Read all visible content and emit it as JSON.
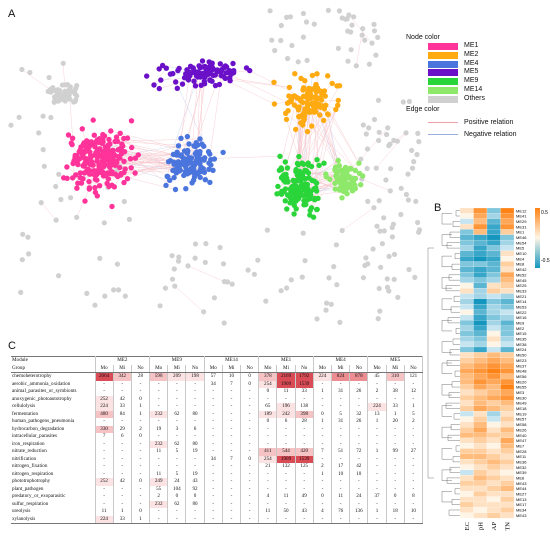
{
  "panels": {
    "a": "A",
    "b": "B",
    "c": "C"
  },
  "legend": {
    "node_title": "Node color",
    "nodes": [
      {
        "label": "ME1",
        "color": "#ff3399"
      },
      {
        "label": "ME2",
        "color": "#ffaa11"
      },
      {
        "label": "ME4",
        "color": "#4a75dd"
      },
      {
        "label": "ME5",
        "color": "#6a10c8"
      },
      {
        "label": "ME9",
        "color": "#2ad53a"
      },
      {
        "label": "ME14",
        "color": "#8ee86a"
      },
      {
        "label": "Others",
        "color": "#d0d0d0"
      }
    ],
    "edge_title": "Edge color",
    "edges": [
      {
        "label": "Positive relation",
        "color": "#f0a0a8"
      },
      {
        "label": "Negative relation",
        "color": "#9aaee0"
      }
    ]
  },
  "heatmap": {
    "columns": [
      "EC",
      "pH",
      "AP",
      "TN"
    ],
    "scale_max": "0.5",
    "scale_min": "-0.5",
    "rows": [
      "ME12",
      "ME41",
      "ME29",
      "ME31",
      "ME1",
      "ME46",
      "ME54",
      "ME5",
      "ME10",
      "ME4",
      "ME8",
      "ME42",
      "ME52",
      "ME45",
      "ME25",
      "ME33",
      "ME21",
      "ME14",
      "ME53",
      "ME22",
      "ME16",
      "ME9",
      "ME2",
      "ME15",
      "ME35",
      "ME38",
      "ME24",
      "ME50",
      "ME23",
      "ME37",
      "ME48",
      "ME56",
      "ME20",
      "ME55",
      "ME3",
      "ME30",
      "ME49",
      "ME18",
      "ME19",
      "ME57",
      "ME58",
      "ME26",
      "ME40",
      "ME47",
      "ME7",
      "ME28",
      "ME11",
      "ME36",
      "ME32",
      "ME39",
      "ME6",
      "ME43",
      "ME44",
      "ME27",
      "ME13",
      "ME17",
      "ME34",
      "ME43"
    ],
    "values": [
      [
        0.1,
        0.5,
        -0.3,
        0.6
      ],
      [
        0.0,
        0.4,
        -0.2,
        0.5
      ],
      [
        -0.1,
        0.3,
        -0.4,
        0.4
      ],
      [
        0.1,
        0.5,
        -0.5,
        0.5
      ],
      [
        -0.3,
        0.3,
        -0.5,
        0.2
      ],
      [
        -0.4,
        -0.5,
        -0.6,
        -0.3
      ],
      [
        -0.3,
        -0.4,
        -0.5,
        -0.2
      ],
      [
        -0.2,
        -0.5,
        -0.3,
        -0.1
      ],
      [
        -0.4,
        -0.5,
        -0.4,
        0.1
      ],
      [
        -0.5,
        -0.6,
        -0.5,
        0.0
      ],
      [
        -0.3,
        -0.3,
        -0.4,
        0.2
      ],
      [
        -0.4,
        -0.5,
        -0.4,
        0.1
      ],
      [
        -0.3,
        -0.5,
        -0.3,
        0.4
      ],
      [
        -0.2,
        -0.3,
        -0.2,
        0.3
      ],
      [
        0.0,
        -0.4,
        0.1,
        0.2
      ],
      [
        0.1,
        -0.2,
        0.2,
        0.1
      ],
      [
        -0.1,
        -0.2,
        -0.1,
        -0.2
      ],
      [
        -0.2,
        -0.6,
        -0.3,
        -0.4
      ],
      [
        -0.1,
        -0.5,
        -0.2,
        -0.3
      ],
      [
        0.0,
        -0.4,
        -0.2,
        -0.1
      ],
      [
        -0.1,
        -0.5,
        -0.3,
        -0.2
      ],
      [
        -0.3,
        -0.6,
        -0.2,
        -0.4
      ],
      [
        -0.2,
        -0.5,
        -0.1,
        -0.3
      ],
      [
        -0.3,
        -0.4,
        0.0,
        -0.3
      ],
      [
        -0.2,
        -0.3,
        0.1,
        -0.2
      ],
      [
        -0.1,
        -0.2,
        0.0,
        -0.1
      ],
      [
        -0.3,
        -0.5,
        -0.1,
        -0.4
      ],
      [
        0.1,
        0.2,
        0.3,
        0.2
      ],
      [
        0.2,
        0.3,
        0.4,
        0.3
      ],
      [
        0.3,
        0.4,
        0.5,
        0.4
      ],
      [
        0.4,
        0.5,
        0.6,
        0.5
      ],
      [
        0.3,
        0.4,
        0.5,
        0.3
      ],
      [
        0.3,
        0.5,
        0.4,
        0.5
      ],
      [
        0.2,
        0.4,
        0.3,
        0.6
      ],
      [
        0.1,
        0.2,
        0.3,
        0.4
      ],
      [
        0.2,
        0.3,
        0.4,
        0.5
      ],
      [
        0.1,
        0.3,
        0.2,
        0.3
      ],
      [
        0.2,
        0.4,
        0.3,
        0.2
      ],
      [
        -0.1,
        0.1,
        -0.2,
        0.1
      ],
      [
        0.0,
        0.2,
        -0.1,
        0.2
      ],
      [
        0.1,
        0.3,
        0.0,
        0.1
      ],
      [
        0.2,
        0.4,
        0.1,
        0.3
      ],
      [
        0.3,
        0.3,
        0.2,
        0.2
      ],
      [
        0.1,
        0.2,
        0.1,
        0.4
      ],
      [
        0.0,
        0.1,
        0.0,
        0.3
      ],
      [
        0.2,
        0.2,
        0.1,
        0.2
      ],
      [
        0.3,
        0.3,
        0.2,
        0.1
      ],
      [
        0.1,
        0.2,
        0.3,
        0.2
      ],
      [
        0.0,
        0.1,
        0.2,
        0.1
      ],
      [
        -0.1,
        0.2,
        0.1,
        0.0
      ],
      [
        0.1,
        0.3,
        0.2,
        0.1
      ],
      [
        0.2,
        0.2,
        0.1,
        0.2
      ],
      [
        0.1,
        0.1,
        0.2,
        0.3
      ],
      [
        0.0,
        0.2,
        0.1,
        0.1
      ],
      [
        0.1,
        0.1,
        0.0,
        0.2
      ],
      [
        0.2,
        0.1,
        0.1,
        0.1
      ],
      [
        0.1,
        0.0,
        0.1,
        0.2
      ],
      [
        0.0,
        0.1,
        0.2,
        0.1
      ]
    ]
  },
  "table": {
    "module_label": "Module",
    "group_label": "Group",
    "modules": [
      "ME2",
      "ME9",
      "ME14",
      "ME1",
      "ME4",
      "ME5"
    ],
    "groups": [
      "Mo",
      "Mi",
      "No"
    ],
    "rows": [
      {
        "name": "chemoheterotrophy",
        "cells": [
          "2064",
          "342",
          "28",
          "598",
          "209",
          "198",
          "57",
          "10",
          "0",
          "378",
          "2169",
          "1792",
          "224",
          "824",
          "878",
          "45",
          "310",
          "121"
        ]
      },
      {
        "name": "aerobic_ammonia_oxidation",
        "cells": [
          "-",
          "-",
          "-",
          "-",
          "-",
          "-",
          "34",
          "7",
          "0",
          "254",
          "1909",
          "1539",
          "-",
          "-",
          "-",
          "-",
          "-",
          "-"
        ]
      },
      {
        "name": "animal_parasites_or_symbionts",
        "cells": [
          "-",
          "-",
          "-",
          "-",
          "-",
          "-",
          "-",
          "-",
          "-",
          "0",
          "11",
          "33",
          "1",
          "31",
          "26",
          "2",
          "38",
          "12"
        ]
      },
      {
        "name": "anoxygenic_photoautotrophy",
        "cells": [
          "252",
          "42",
          "0",
          "-",
          "-",
          "-",
          "-",
          "-",
          "-",
          "-",
          "-",
          "-",
          "-",
          "-",
          "-",
          "-",
          "-",
          "-"
        ]
      },
      {
        "name": "cellulolysis",
        "cells": [
          "224",
          "33",
          "1",
          "-",
          "-",
          "-",
          "-",
          "-",
          "-",
          "65",
          "196",
          "138",
          "-",
          "-",
          "-",
          "224",
          "33",
          "1"
        ]
      },
      {
        "name": "fermentation",
        "cells": [
          "480",
          "84",
          "1",
          "232",
          "62",
          "80",
          "-",
          "-",
          "-",
          "189",
          "242",
          "398",
          "0",
          "5",
          "32",
          "13",
          "1",
          "5"
        ]
      },
      {
        "name": "human_pathogens_pneumonia",
        "cells": [
          "-",
          "-",
          "-",
          "-",
          "-",
          "-",
          "-",
          "-",
          "-",
          "0",
          "6",
          "28",
          "1",
          "31",
          "26",
          "1",
          "20",
          "2"
        ]
      },
      {
        "name": "hydrocarbon_degradation",
        "cells": [
          "330",
          "29",
          "2",
          "19",
          "3",
          "6",
          "-",
          "-",
          "-",
          "-",
          "-",
          "-",
          "-",
          "-",
          "-",
          "-",
          "-",
          "-"
        ]
      },
      {
        "name": "intracellular_parasites",
        "cells": [
          "7",
          "6",
          "0",
          "-",
          "-",
          "-",
          "-",
          "-",
          "-",
          "-",
          "-",
          "-",
          "-",
          "-",
          "-",
          "-",
          "-",
          "-"
        ]
      },
      {
        "name": "iron_respiration",
        "cells": [
          "-",
          "-",
          "-",
          "232",
          "62",
          "80",
          "-",
          "-",
          "-",
          "-",
          "-",
          "-",
          "-",
          "-",
          "-",
          "-",
          "-",
          "-"
        ]
      },
      {
        "name": "nitrate_reduction",
        "cells": [
          "-",
          "-",
          "-",
          "11",
          "5",
          "19",
          "-",
          "-",
          "-",
          "411",
          "544",
          "420",
          "7",
          "51",
          "72",
          "1",
          "99",
          "27"
        ]
      },
      {
        "name": "nitrification",
        "cells": [
          "-",
          "-",
          "-",
          "-",
          "-",
          "-",
          "34",
          "7",
          "0",
          "254",
          "1909",
          "1539",
          "-",
          "-",
          "-",
          "-",
          "-",
          "-"
        ]
      },
      {
        "name": "nitrogen_fixation",
        "cells": [
          "-",
          "-",
          "-",
          "-",
          "-",
          "-",
          "-",
          "-",
          "-",
          "21",
          "132",
          "125",
          "2",
          "17",
          "42",
          "-",
          "-",
          "-"
        ]
      },
      {
        "name": "nitrogen_respiration",
        "cells": [
          "-",
          "-",
          "-",
          "11",
          "5",
          "19",
          "-",
          "-",
          "-",
          "-",
          "-",
          "-",
          "1",
          "10",
          "10",
          "-",
          "-",
          "-"
        ]
      },
      {
        "name": "phototrophotrophy",
        "cells": [
          "252",
          "42",
          "0",
          "249",
          "24",
          "43",
          "-",
          "-",
          "-",
          "-",
          "-",
          "-",
          "-",
          "-",
          "-",
          "-",
          "-",
          "-"
        ]
      },
      {
        "name": "plant_pathogen",
        "cells": [
          "-",
          "-",
          "-",
          "55",
          "104",
          "92",
          "-",
          "-",
          "-",
          "-",
          "-",
          "-",
          "-",
          "-",
          "-",
          "-",
          "-",
          "-"
        ]
      },
      {
        "name": "predatory_or_exoparasitic",
        "cells": [
          "-",
          "-",
          "-",
          "2",
          "0",
          "0",
          "-",
          "-",
          "-",
          "4",
          "11",
          "49",
          "0",
          "11",
          "24",
          "37",
          "0",
          "8"
        ]
      },
      {
        "name": "sulfur_respiration",
        "cells": [
          "-",
          "-",
          "-",
          "232",
          "62",
          "80",
          "-",
          "-",
          "-",
          "-",
          "-",
          "-",
          "-",
          "-",
          "-",
          "-",
          "-",
          "-"
        ]
      },
      {
        "name": "ureolysis",
        "cells": [
          "11",
          "1",
          "0",
          "-",
          "-",
          "-",
          "-",
          "-",
          "-",
          "11",
          "50",
          "43",
          "4",
          "76",
          "136",
          "1",
          "18",
          "10"
        ]
      },
      {
        "name": "xylanolysis",
        "cells": [
          "224",
          "33",
          "1",
          "-",
          "-",
          "-",
          "-",
          "-",
          "-",
          "-",
          "-",
          "-",
          "-",
          "-",
          "-",
          "-",
          "-",
          "-"
        ]
      }
    ]
  }
}
